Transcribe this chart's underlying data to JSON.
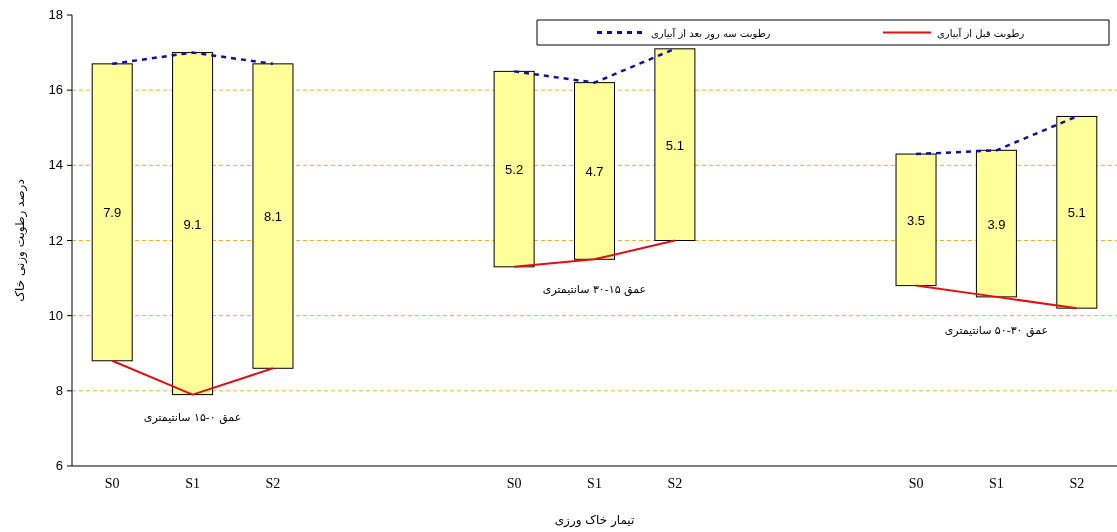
{
  "chart_data": {
    "type": "bar",
    "xlabel": "تیمار خاک ورزی",
    "ylabel": "درصد رطوبت وزنی خاک",
    "categories": [
      "S0",
      "S1",
      "S2",
      null,
      null,
      "S0",
      "S1",
      "S2",
      null,
      null,
      "S0",
      "S1",
      "S2"
    ],
    "series": [
      {
        "base": [
          8.8,
          7.9,
          8.6,
          null,
          null,
          11.3,
          11.5,
          12.0,
          null,
          null,
          10.8,
          10.5,
          10.2
        ],
        "color": "#ffff99",
        "values": [
          7.9,
          9.1,
          8.1,
          null,
          null,
          5.2,
          4.7,
          5.1,
          null,
          null,
          3.5,
          3.9,
          5.1
        ],
        "value_labels": [
          "7.9",
          "9.1",
          "8.1",
          null,
          null,
          "5.2",
          "4.7",
          "5.1",
          null,
          null,
          "3.5",
          "3.9",
          "5.1"
        ]
      },
      {
        "type": "line",
        "name": "رطوبت قبل از آبیاری",
        "color": "#e01010",
        "line_style": "solid",
        "values": [
          8.8,
          7.9,
          8.6,
          null,
          null,
          11.3,
          11.5,
          12.0,
          null,
          null,
          10.8,
          10.5,
          10.2
        ]
      },
      {
        "type": "line",
        "name": "رطوبت سه روز بعد از آبیاری",
        "color": "#1010a0",
        "line_style": "dashed",
        "values": [
          16.7,
          17.0,
          16.7,
          null,
          null,
          16.5,
          16.2,
          17.1,
          null,
          null,
          14.3,
          14.4,
          15.3
        ]
      }
    ],
    "ylim": [
      6,
      18
    ],
    "yticks": [
      6,
      8,
      10,
      12,
      14,
      16,
      18
    ],
    "grid": "y",
    "legend": "top right",
    "marker": "none",
    "annotations": [
      "عمق ۰-۱۵ سانتیمتری",
      "عمق ۱۵-۳۰ سانتیمتری",
      "عمق ۳۰-۵۰ سانتیمتری"
    ]
  }
}
